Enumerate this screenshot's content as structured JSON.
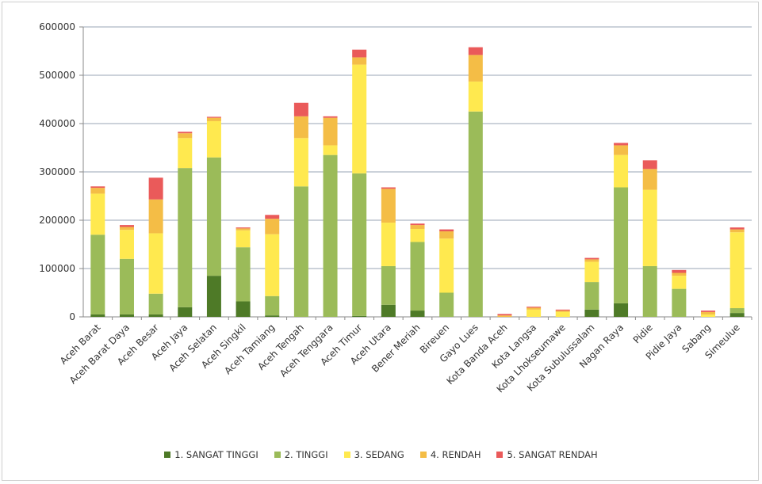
{
  "chart_data": {
    "type": "bar",
    "stacked": true,
    "ylim": [
      0,
      600000
    ],
    "yticks": [
      0,
      100000,
      200000,
      300000,
      400000,
      500000,
      600000
    ],
    "ytick_labels": [
      "0",
      "100000",
      "200000",
      "300000",
      "400000",
      "500000",
      "600000"
    ],
    "grid": true,
    "legend_position": "bottom",
    "categories": [
      "Aceh Barat",
      "Aceh Barat Daya",
      "Aceh Besar",
      "Aceh Jaya",
      "Aceh Selatan",
      "Aceh Singkil",
      "Aceh Tamiang",
      "Aceh Tengah",
      "Aceh Tenggara",
      "Aceh Timur",
      "Aceh Utara",
      "Bener Meriah",
      "Bireuen",
      "Gayo Lues",
      "Kota Banda Aceh",
      "Kota Langsa",
      "Kota Lhokseumawe",
      "Kota Subulussalam",
      "Nagan Raya",
      "Pidie",
      "Pidie Jaya",
      "Sabang",
      "Simeulue"
    ],
    "series": [
      {
        "name": "1. SANGAT TINGGI",
        "color": "#4e7a27",
        "values": [
          5000,
          5000,
          5000,
          20000,
          85000,
          32000,
          3000,
          0,
          0,
          2000,
          25000,
          13000,
          0,
          0,
          0,
          0,
          0,
          15000,
          28000,
          0,
          0,
          0,
          8000
        ]
      },
      {
        "name": "2. TINGGI",
        "color": "#9bbb59",
        "values": [
          165000,
          115000,
          43000,
          288000,
          245000,
          112000,
          40000,
          270000,
          335000,
          295000,
          80000,
          142000,
          50000,
          425000,
          0,
          0,
          0,
          57000,
          240000,
          105000,
          58000,
          0,
          10000
        ]
      },
      {
        "name": "3. SEDANG",
        "color": "#ffe94f",
        "values": [
          85000,
          60000,
          125000,
          62000,
          75000,
          35000,
          128000,
          100000,
          20000,
          225000,
          90000,
          27000,
          112000,
          62000,
          0,
          15000,
          10000,
          42000,
          67000,
          158000,
          27000,
          5000,
          157000
        ]
      },
      {
        "name": "4. RENDAH",
        "color": "#f4bd46",
        "values": [
          12000,
          6000,
          70000,
          10000,
          7000,
          4000,
          32000,
          45000,
          57000,
          15000,
          70000,
          8000,
          15000,
          55000,
          3000,
          4000,
          3000,
          5000,
          20000,
          43000,
          6000,
          5000,
          6000
        ]
      },
      {
        "name": "5. SANGAT RENDAH",
        "color": "#ea5a5a",
        "values": [
          3000,
          4000,
          45000,
          3000,
          2000,
          2000,
          8000,
          28000,
          3000,
          16000,
          3000,
          3000,
          4000,
          16000,
          3000,
          2000,
          2000,
          3000,
          5000,
          18000,
          6000,
          3000,
          4000
        ]
      }
    ]
  }
}
